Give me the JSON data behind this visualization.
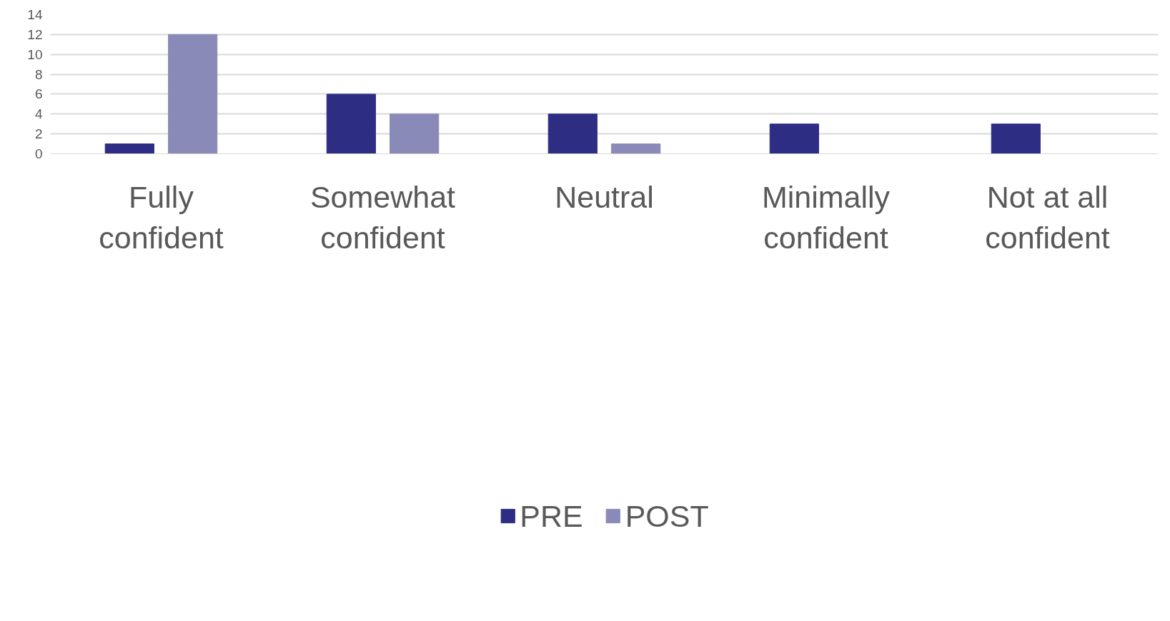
{
  "chart_data": {
    "type": "bar",
    "categories": [
      "Fully confident",
      "Somewhat confident",
      "Neutral",
      "Minimally confident",
      "Not at all confident"
    ],
    "series": [
      {
        "name": "PRE",
        "color": "#2e2d84",
        "values": [
          1,
          6,
          4,
          3,
          3
        ]
      },
      {
        "name": "POST",
        "color": "#8a8ab8",
        "values": [
          12,
          4,
          1,
          0,
          0
        ]
      }
    ],
    "ylim": [
      0,
      14
    ],
    "yticks": [
      0,
      2,
      4,
      6,
      8,
      10,
      12,
      14
    ],
    "grid": "y",
    "legend": "bottom"
  }
}
